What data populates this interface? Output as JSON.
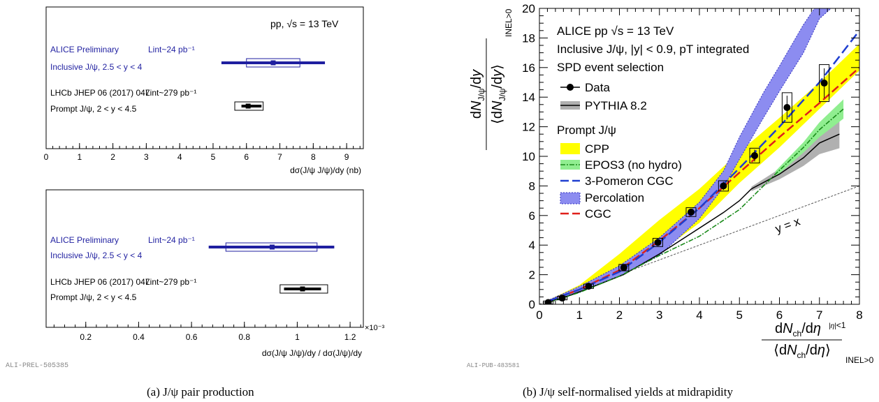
{
  "colors": {
    "alice": "#1f1fa0",
    "black": "#000000",
    "cpp": "#ffff00",
    "epos": "#2ca02c",
    "epos_band": "#90ee90",
    "cgc3": "#1f3fd0",
    "perc": "#8c8cf0",
    "cgc": "#e0201a",
    "pythia_band": "#b0b0b0"
  },
  "chart_data": [
    {
      "id": "panel-a-top",
      "type": "scatter",
      "xlabel": "dσ(J/ψ J/ψ)/dy (nb)",
      "xlim": [
        0,
        9.5
      ],
      "xticks": [
        "0",
        "1",
        "2",
        "3",
        "4",
        "5",
        "6",
        "7",
        "8",
        "9"
      ],
      "energy_label": "pp, √s = 13 TeV",
      "entries": [
        {
          "line1": "ALICE Preliminary",
          "lumi": "Lint~24 pb⁻¹",
          "line2": "Inclusive J/ψ, 2.5 < y < 4",
          "value": 6.8,
          "stat": [
            5.25,
            8.35
          ],
          "syst": [
            6.0,
            7.6
          ],
          "color": "alice"
        },
        {
          "line1": "LHCb JHEP 06 (2017) 047",
          "lumi": "Lint~279 pb⁻¹",
          "line2": "Prompt J/ψ, 2 < y < 4.5",
          "value": 6.05,
          "stat": [
            5.85,
            6.45
          ],
          "syst": [
            5.65,
            6.5
          ],
          "color": "black"
        }
      ]
    },
    {
      "id": "panel-a-bottom",
      "type": "scatter",
      "xlabel": "dσ(J/ψ J/ψ)/dy / dσ(J/ψ)/dy",
      "multiplier": "×10⁻³",
      "xlim": [
        0.05,
        1.25
      ],
      "xticks": [
        "0.2",
        "0.4",
        "0.6",
        "0.8",
        "1",
        "1.2"
      ],
      "entries": [
        {
          "line1": "ALICE Preliminary",
          "lumi": "Lint~24 pb⁻¹",
          "line2": "Inclusive J/ψ, 2.5 < y < 4",
          "value": 0.905,
          "stat": [
            0.665,
            1.14
          ],
          "syst": [
            0.73,
            1.075
          ],
          "color": "alice"
        },
        {
          "line1": "LHCb JHEP 06 (2017) 047",
          "lumi": "Lint~279 pb⁻¹",
          "line2": "Prompt J/ψ, 2 < y < 4.5",
          "value": 1.02,
          "stat": [
            0.95,
            1.09
          ],
          "syst": [
            0.935,
            1.115
          ],
          "color": "black"
        }
      ],
      "watermark": "ALI-PREL-505385",
      "caption": "(a)  J/ψ pair production"
    },
    {
      "id": "panel-b",
      "type": "line",
      "title_lines": [
        "ALICE pp √s = 13 TeV",
        "Inclusive J/ψ, |y| < 0.9, pT integrated",
        "SPD event selection"
      ],
      "prompt_label": "Prompt J/ψ",
      "xlim": [
        0,
        8
      ],
      "ylim": [
        0,
        20
      ],
      "xticks": [
        "0",
        "1",
        "2",
        "3",
        "4",
        "5",
        "6",
        "7",
        "8"
      ],
      "yticks": [
        "0",
        "2",
        "4",
        "6",
        "8",
        "10",
        "12",
        "14",
        "16",
        "18",
        "20"
      ],
      "xlabel": "dNch/dη |η|<1 / ⟨dNch/dη⟩ INEL>0",
      "ylabel": "dNJ/ψ/dy / ⟨dNJ/ψ/dy⟩ INEL>0",
      "diagonal_label": "y = x",
      "legend": [
        "Data",
        "PYTHIA 8.2",
        "CPP",
        "EPOS3 (no hydro)",
        "3-Pomeron CGC",
        "Percolation",
        "CGC"
      ],
      "data": {
        "x": [
          0.22,
          0.57,
          1.23,
          2.11,
          2.96,
          3.79,
          4.6,
          5.38,
          6.19,
          7.12
        ],
        "y": [
          0.12,
          0.42,
          1.22,
          2.48,
          4.18,
          6.23,
          8.0,
          10.05,
          13.3,
          14.95
        ],
        "syst": [
          0.1,
          0.12,
          0.15,
          0.22,
          0.28,
          0.3,
          0.35,
          0.5,
          1.0,
          1.25
        ]
      },
      "pythia": {
        "x": [
          0.2,
          0.6,
          1.2,
          2.1,
          3.0,
          3.8,
          4.6,
          5.0,
          5.3,
          6.0,
          6.6,
          7.0,
          7.5
        ],
        "y": [
          0.15,
          0.45,
          1.05,
          2.0,
          3.4,
          4.8,
          6.2,
          7.0,
          7.8,
          8.8,
          9.9,
          10.9,
          11.5
        ]
      },
      "cpp": {
        "x": [
          0.2,
          1.0,
          2.0,
          3.0,
          4.0,
          5.0,
          6.0,
          7.0,
          8.0
        ],
        "lower": [
          0.15,
          0.8,
          2.0,
          3.5,
          5.5,
          8.2,
          10.6,
          13.2,
          15.8
        ],
        "upper": [
          0.25,
          1.3,
          3.4,
          5.7,
          7.8,
          10.3,
          12.6,
          15.0,
          17.6
        ]
      },
      "epos": {
        "x": [
          0.2,
          1.0,
          2.0,
          3.0,
          4.0,
          5.0,
          5.9,
          6.6,
          7.0,
          7.6
        ],
        "y": [
          0.1,
          0.8,
          1.9,
          3.3,
          4.6,
          6.4,
          8.8,
          10.6,
          11.8,
          13.2
        ]
      },
      "cgc3": {
        "x": [
          0.2,
          1.0,
          2.0,
          3.0,
          4.0,
          5.0,
          6.0,
          7.0,
          8.0
        ],
        "y": [
          0.2,
          1.0,
          2.2,
          4.2,
          6.5,
          9.2,
          12.0,
          15.0,
          18.5
        ]
      },
      "percolation": {
        "x": [
          0.2,
          1.0,
          2.0,
          3.0,
          4.0,
          4.6,
          5.0,
          5.6,
          6.0,
          6.6,
          7.0,
          7.5
        ],
        "lower": [
          0.1,
          0.8,
          1.9,
          3.3,
          5.8,
          7.9,
          9.8,
          12.6,
          14.4,
          17.0,
          19.3,
          20.5
        ],
        "upper": [
          0.25,
          1.2,
          2.6,
          4.5,
          6.9,
          9.0,
          11.3,
          14.3,
          16.1,
          18.9,
          20.5,
          20.5
        ]
      },
      "cgc": {
        "x": [
          0.2,
          1.0,
          2.0,
          3.0,
          4.0,
          5.0,
          6.0,
          7.0,
          8.0
        ],
        "y": [
          0.2,
          1.0,
          2.3,
          4.3,
          6.5,
          8.9,
          11.3,
          13.6,
          16.0
        ]
      },
      "watermark": "ALI-PUB-483581",
      "caption": "(b)  J/ψ self-normalised yields at midrapidity"
    }
  ]
}
